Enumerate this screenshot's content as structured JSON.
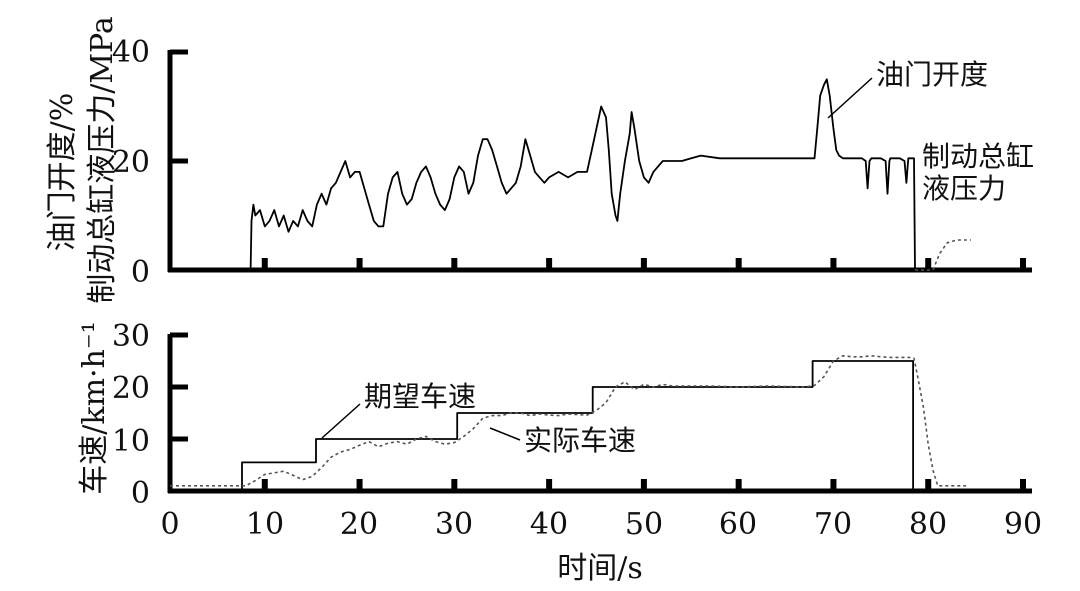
{
  "chart_data": [
    {
      "type": "line",
      "xlabel": "",
      "ylabel": [
        "油门开度/%",
        "制动总缸液压力/MPa"
      ],
      "xlim": [
        0,
        90
      ],
      "ylim": [
        0,
        40
      ],
      "y_ticks": [
        "0",
        "20",
        "40"
      ],
      "series": [
        {
          "name": "油门开度",
          "style": "solid",
          "points": [
            [
              0,
              0
            ],
            [
              8.5,
              0
            ],
            [
              8.6,
              9
            ],
            [
              8.8,
              12
            ],
            [
              9,
              10
            ],
            [
              9.5,
              11
            ],
            [
              10,
              8
            ],
            [
              10.5,
              9
            ],
            [
              11,
              11
            ],
            [
              11.5,
              8
            ],
            [
              12,
              10
            ],
            [
              12.5,
              7
            ],
            [
              13,
              9
            ],
            [
              13.5,
              8
            ],
            [
              14,
              11
            ],
            [
              14.5,
              9
            ],
            [
              15,
              8
            ],
            [
              15.5,
              12
            ],
            [
              16,
              14
            ],
            [
              16.5,
              12
            ],
            [
              17,
              15
            ],
            [
              17.5,
              16
            ],
            [
              18,
              18
            ],
            [
              18.5,
              20
            ],
            [
              19,
              17
            ],
            [
              19.5,
              18
            ],
            [
              20,
              18
            ],
            [
              20.5,
              15
            ],
            [
              21,
              12
            ],
            [
              21.5,
              9
            ],
            [
              22,
              8
            ],
            [
              22.5,
              8
            ],
            [
              23,
              14
            ],
            [
              23.5,
              17
            ],
            [
              24,
              18
            ],
            [
              24.5,
              14
            ],
            [
              25,
              12
            ],
            [
              25.5,
              13
            ],
            [
              26,
              16
            ],
            [
              26.5,
              18
            ],
            [
              27,
              19
            ],
            [
              27.5,
              17
            ],
            [
              28,
              14
            ],
            [
              28.5,
              12
            ],
            [
              29,
              11
            ],
            [
              29.5,
              13
            ],
            [
              30,
              17
            ],
            [
              30.5,
              19
            ],
            [
              31,
              18
            ],
            [
              31.5,
              14
            ],
            [
              32,
              16
            ],
            [
              32.5,
              21
            ],
            [
              33,
              24
            ],
            [
              33.5,
              24
            ],
            [
              34,
              22
            ],
            [
              34.5,
              19
            ],
            [
              35,
              16
            ],
            [
              35.5,
              14
            ],
            [
              36,
              15
            ],
            [
              36.5,
              16
            ],
            [
              37,
              19
            ],
            [
              37.5,
              24
            ],
            [
              38,
              21
            ],
            [
              38.5,
              18
            ],
            [
              39,
              17
            ],
            [
              39.5,
              16
            ],
            [
              40,
              17
            ],
            [
              41,
              18
            ],
            [
              42,
              17
            ],
            [
              43,
              18
            ],
            [
              44,
              18
            ],
            [
              44.5,
              22
            ],
            [
              45,
              26
            ],
            [
              45.5,
              30
            ],
            [
              46,
              28
            ],
            [
              46.3,
              22
            ],
            [
              46.6,
              14
            ],
            [
              47,
              10
            ],
            [
              47.2,
              9
            ],
            [
              47.5,
              14
            ],
            [
              48,
              20
            ],
            [
              48.5,
              25
            ],
            [
              48.7,
              29
            ],
            [
              49,
              26
            ],
            [
              49.5,
              20
            ],
            [
              50,
              17
            ],
            [
              50.5,
              16
            ],
            [
              51,
              18
            ],
            [
              51.5,
              19
            ],
            [
              52,
              20
            ],
            [
              54,
              20
            ],
            [
              55,
              20.5
            ],
            [
              56,
              21
            ],
            [
              58,
              20.5
            ],
            [
              60,
              20.5
            ],
            [
              62,
              20.5
            ],
            [
              64,
              20.5
            ],
            [
              66,
              20.5
            ],
            [
              68,
              20.5
            ],
            [
              68.3,
              26
            ],
            [
              68.6,
              32
            ],
            [
              69,
              34
            ],
            [
              69.3,
              35
            ],
            [
              69.6,
              32
            ],
            [
              70,
              26
            ],
            [
              70.3,
              22
            ],
            [
              70.6,
              21
            ],
            [
              71,
              20.5
            ],
            [
              72,
              20.5
            ],
            [
              73,
              20.5
            ],
            [
              73.4,
              20
            ],
            [
              73.6,
              15
            ],
            [
              73.8,
              20
            ],
            [
              74,
              20.5
            ],
            [
              75,
              20.5
            ],
            [
              75.5,
              20
            ],
            [
              75.7,
              14
            ],
            [
              75.9,
              20
            ],
            [
              76,
              20.5
            ],
            [
              77,
              20.5
            ],
            [
              77.5,
              20
            ],
            [
              77.7,
              16
            ],
            [
              77.9,
              20.5
            ],
            [
              78.5,
              20.5
            ],
            [
              78.6,
              0
            ],
            [
              90,
              0
            ]
          ]
        },
        {
          "name": "制动总缸液压力",
          "style": "dotted",
          "points": [
            [
              78.6,
              0
            ],
            [
              80.5,
              0
            ],
            [
              81.2,
              3
            ],
            [
              82,
              5
            ],
            [
              83,
              5.5
            ],
            [
              84.5,
              5.5
            ]
          ]
        }
      ],
      "annotations": [
        "油门开度",
        "制动总缸",
        "液压力"
      ]
    },
    {
      "type": "line",
      "xlabel": "时间/s",
      "ylabel": "车速/km·h⁻¹",
      "xlim": [
        0,
        90
      ],
      "ylim": [
        0,
        30
      ],
      "x_ticks": [
        "0",
        "10",
        "20",
        "30",
        "40",
        "50",
        "60",
        "70",
        "80",
        "90"
      ],
      "y_ticks": [
        "0",
        "10",
        "20",
        "30"
      ],
      "series": [
        {
          "name": "期望车速",
          "style": "solid",
          "points": [
            [
              0,
              0
            ],
            [
              7.6,
              0
            ],
            [
              7.6,
              5.5
            ],
            [
              15.4,
              5.5
            ],
            [
              15.4,
              10
            ],
            [
              30.3,
              10
            ],
            [
              30.3,
              15
            ],
            [
              44.6,
              15
            ],
            [
              44.6,
              20
            ],
            [
              67.8,
              20
            ],
            [
              67.8,
              25
            ],
            [
              78.4,
              25
            ],
            [
              78.4,
              0
            ],
            [
              90,
              0
            ]
          ]
        },
        {
          "name": "实际车速",
          "style": "dotted",
          "points": [
            [
              0,
              1
            ],
            [
              8,
              1
            ],
            [
              9,
              2
            ],
            [
              10,
              3.2
            ],
            [
              11,
              3.5
            ],
            [
              12,
              3.8
            ],
            [
              13,
              3
            ],
            [
              14,
              2.2
            ],
            [
              15,
              2.8
            ],
            [
              16,
              4.5
            ],
            [
              17,
              6.5
            ],
            [
              18,
              7.5
            ],
            [
              19,
              8
            ],
            [
              20,
              8.8
            ],
            [
              21,
              9.5
            ],
            [
              22,
              8.5
            ],
            [
              23,
              9.2
            ],
            [
              24,
              9.5
            ],
            [
              25,
              9
            ],
            [
              26,
              10
            ],
            [
              27,
              10.5
            ],
            [
              28,
              9.5
            ],
            [
              29,
              9
            ],
            [
              30,
              9.3
            ],
            [
              31,
              10.5
            ],
            [
              32,
              12
            ],
            [
              33,
              14
            ],
            [
              34,
              14.5
            ],
            [
              35,
              14.5
            ],
            [
              36,
              15
            ],
            [
              37,
              15
            ],
            [
              38,
              14.5
            ],
            [
              39,
              14.8
            ],
            [
              40,
              14.6
            ],
            [
              41,
              14.5
            ],
            [
              42,
              14.8
            ],
            [
              43,
              14.7
            ],
            [
              44,
              14.6
            ],
            [
              45,
              15.5
            ],
            [
              46,
              17
            ],
            [
              47,
              20
            ],
            [
              48,
              21
            ],
            [
              49,
              19.5
            ],
            [
              50,
              20.5
            ],
            [
              51,
              20
            ],
            [
              52,
              20.5
            ],
            [
              53,
              20.2
            ],
            [
              55,
              20.2
            ],
            [
              57,
              20.2
            ],
            [
              60,
              20
            ],
            [
              63,
              20.2
            ],
            [
              65,
              20.1
            ],
            [
              67,
              20
            ],
            [
              68,
              20.3
            ],
            [
              69,
              22
            ],
            [
              70,
              25
            ],
            [
              71,
              26
            ],
            [
              72,
              25.8
            ],
            [
              73,
              25.8
            ],
            [
              74,
              26
            ],
            [
              75,
              25.8
            ],
            [
              76,
              25.7
            ],
            [
              77,
              25.7
            ],
            [
              78,
              25.7
            ],
            [
              78.5,
              25.5
            ],
            [
              79,
              21
            ],
            [
              79.5,
              16
            ],
            [
              80,
              9
            ],
            [
              80.5,
              4
            ],
            [
              81,
              1
            ],
            [
              84,
              1
            ]
          ]
        }
      ],
      "annotations": [
        "期望车速",
        "实际车速"
      ]
    }
  ]
}
